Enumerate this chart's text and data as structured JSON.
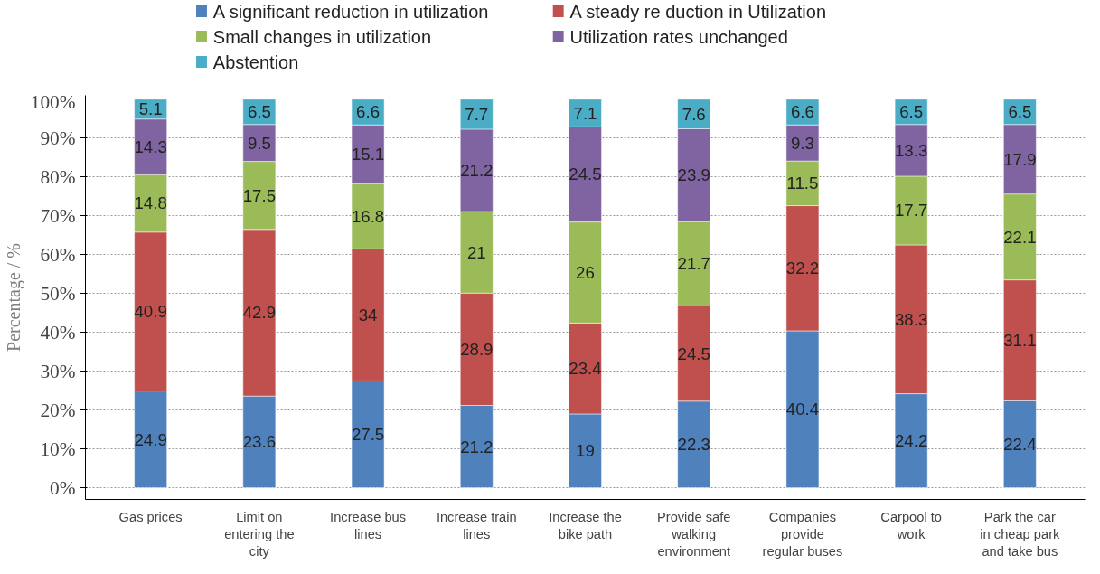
{
  "chart_data": {
    "type": "bar",
    "stacked": true,
    "ylabel": "Percentage / %",
    "categories": [
      "Gas prices",
      "Limit on entering the city",
      "Increase bus lines",
      "Increase train lines",
      "Increase the bike path",
      "Provide safe walking environment",
      "Companies provide regular buses",
      "Carpool to work",
      "Park the car in cheap park and take bus"
    ],
    "series": [
      {
        "name": "A significant reduction in utilization",
        "color": "#4f81bd",
        "values": [
          24.9,
          23.6,
          27.5,
          21.2,
          19,
          22.3,
          40.4,
          24.2,
          22.4
        ]
      },
      {
        "name": "A steady re duction in Utilization",
        "color": "#c0504d",
        "values": [
          40.9,
          42.9,
          34,
          28.9,
          23.4,
          24.5,
          32.2,
          38.3,
          31.1
        ]
      },
      {
        "name": "Small changes in utilization",
        "color": "#9bbb59",
        "values": [
          14.8,
          17.5,
          16.8,
          21,
          26,
          21.7,
          11.5,
          17.7,
          22.1
        ]
      },
      {
        "name": "Utilization rates unchanged",
        "color": "#8064a2",
        "values": [
          14.3,
          9.5,
          15.1,
          21.2,
          24.5,
          23.9,
          9.3,
          13.3,
          17.9
        ]
      },
      {
        "name": "Abstention",
        "color": "#4bacc6",
        "values": [
          5.1,
          6.5,
          6.6,
          7.7,
          7.1,
          7.6,
          6.6,
          6.5,
          6.5
        ]
      }
    ],
    "ylim": [
      -3,
      101
    ],
    "yticks": [
      {
        "value": 0,
        "label": "0%"
      },
      {
        "value": 10,
        "label": "10%"
      },
      {
        "value": 20,
        "label": "20%"
      },
      {
        "value": 30,
        "label": "30%"
      },
      {
        "value": 40,
        "label": "40%"
      },
      {
        "value": 50,
        "label": "50%"
      },
      {
        "value": 60,
        "label": "60%"
      },
      {
        "value": 70,
        "label": "70%"
      },
      {
        "value": 80,
        "label": "80%"
      },
      {
        "value": 90,
        "label": "90%"
      },
      {
        "value": 100,
        "label": "100%"
      }
    ],
    "grid": "y",
    "legend": "top",
    "data_labels": true
  }
}
